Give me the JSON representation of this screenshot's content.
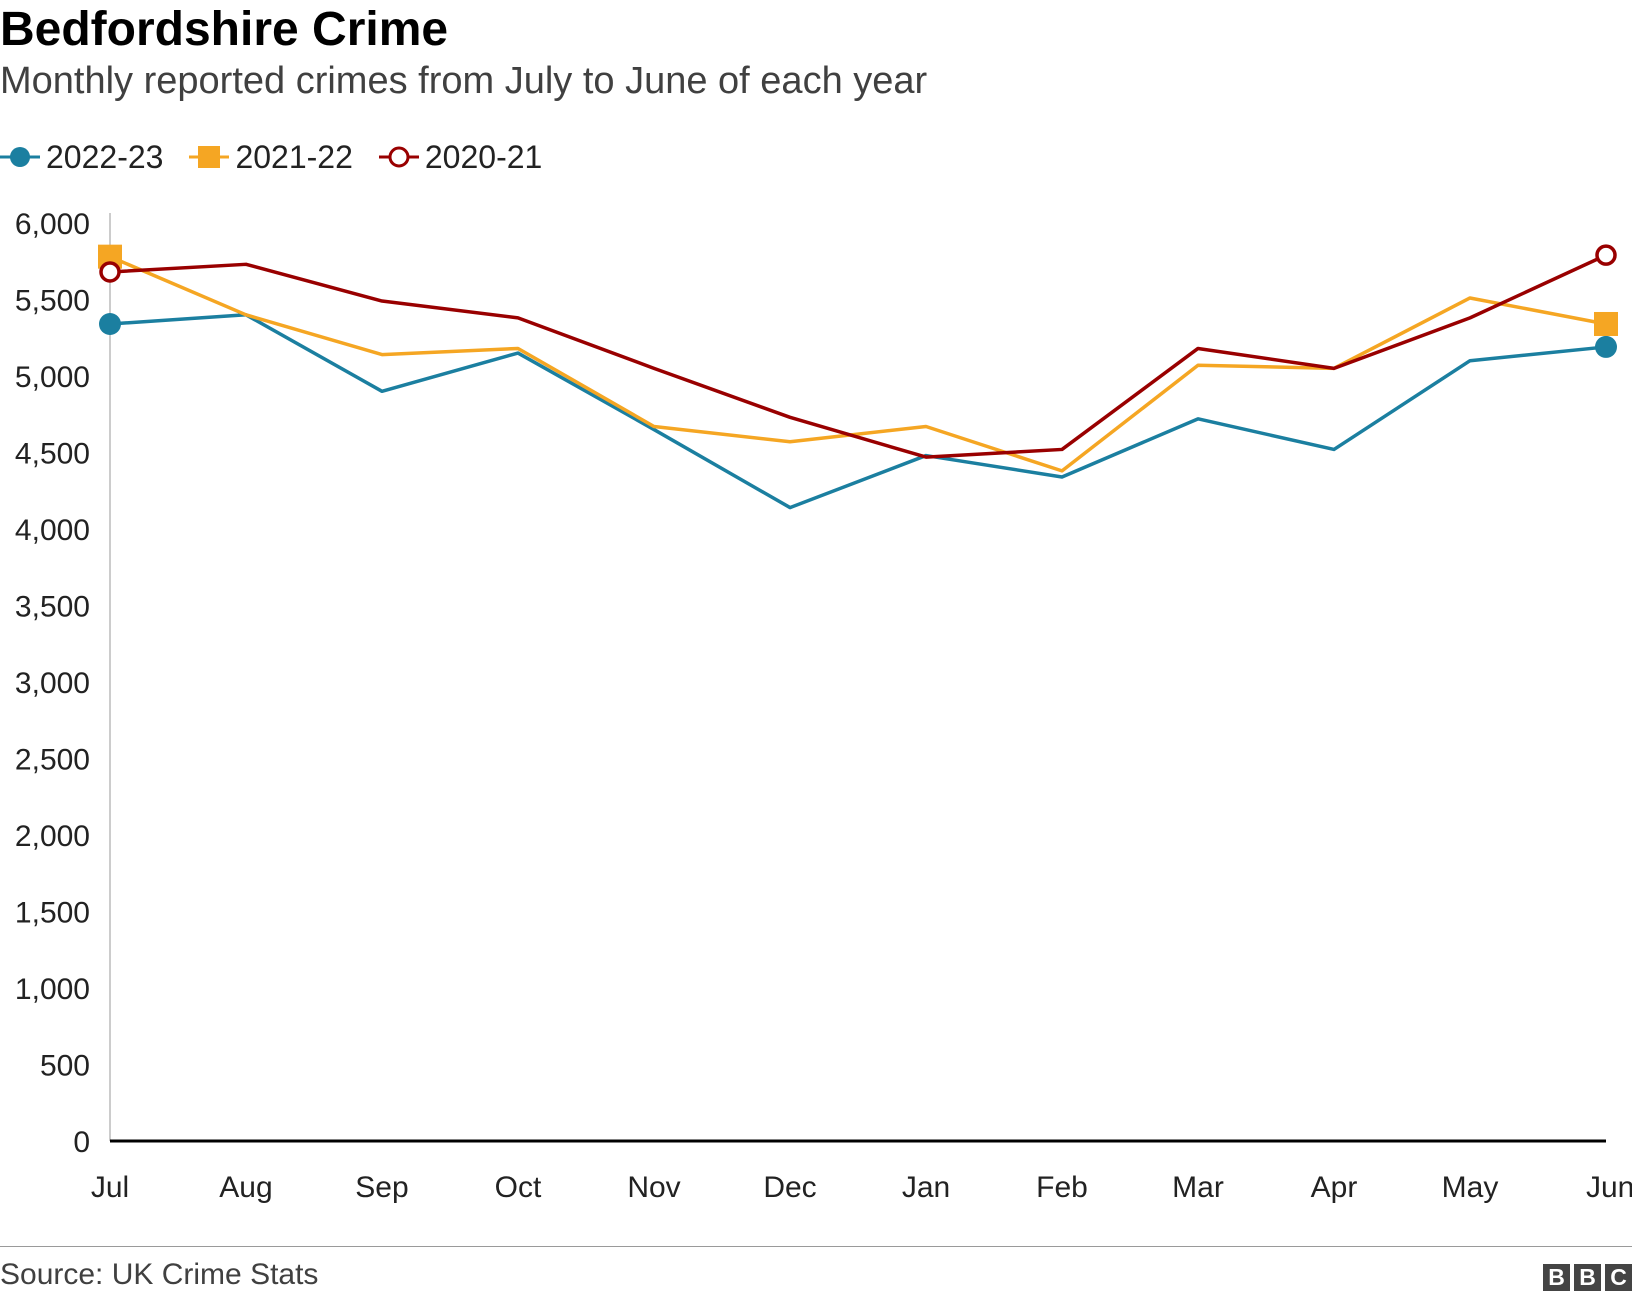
{
  "header": {
    "title": "Bedfordshire Crime",
    "subtitle": "Monthly reported crimes from July to June of each year"
  },
  "footer": {
    "source": "Source: UK Crime Stats",
    "logo_letters": [
      "B",
      "B",
      "C"
    ]
  },
  "colors": {
    "series_2022_23": "#1b7fa0",
    "series_2021_22": "#f5a623",
    "series_2020_21": "#990000",
    "axis": "#000000",
    "grid_axis": "#cccccc"
  },
  "chart_data": {
    "type": "line",
    "title": "Bedfordshire Crime",
    "subtitle": "Monthly reported crimes from July to June of each year",
    "categories": [
      "Jul",
      "Aug",
      "Sep",
      "Oct",
      "Nov",
      "Dec",
      "Jan",
      "Feb",
      "Mar",
      "Apr",
      "May",
      "Jun"
    ],
    "ylim": [
      0,
      6000
    ],
    "yticks": [
      0,
      500,
      1000,
      1500,
      2000,
      2500,
      3000,
      3500,
      4000,
      4500,
      5000,
      5500,
      6000
    ],
    "ytick_labels": [
      "0",
      "500",
      "1,000",
      "1,500",
      "2,000",
      "2,500",
      "3,000",
      "3,500",
      "4,000",
      "4,500",
      "5,000",
      "5,500",
      "6,000"
    ],
    "legend_position": "top-left",
    "grid": false,
    "series": [
      {
        "name": "2022-23",
        "color": "#1b7fa0",
        "marker": "filled-circle",
        "values": [
          5340,
          5400,
          4900,
          5150,
          4650,
          4140,
          4480,
          4340,
          4720,
          4520,
          5100,
          5190
        ]
      },
      {
        "name": "2021-22",
        "color": "#f5a623",
        "marker": "filled-square",
        "values": [
          5780,
          5400,
          5140,
          5180,
          4670,
          4570,
          4670,
          4380,
          5070,
          5050,
          5510,
          5340
        ]
      },
      {
        "name": "2020-21",
        "color": "#990000",
        "marker": "hollow-circle",
        "values": [
          5680,
          5730,
          5490,
          5380,
          5050,
          4730,
          4470,
          4520,
          5180,
          5050,
          5380,
          5790
        ]
      }
    ]
  }
}
